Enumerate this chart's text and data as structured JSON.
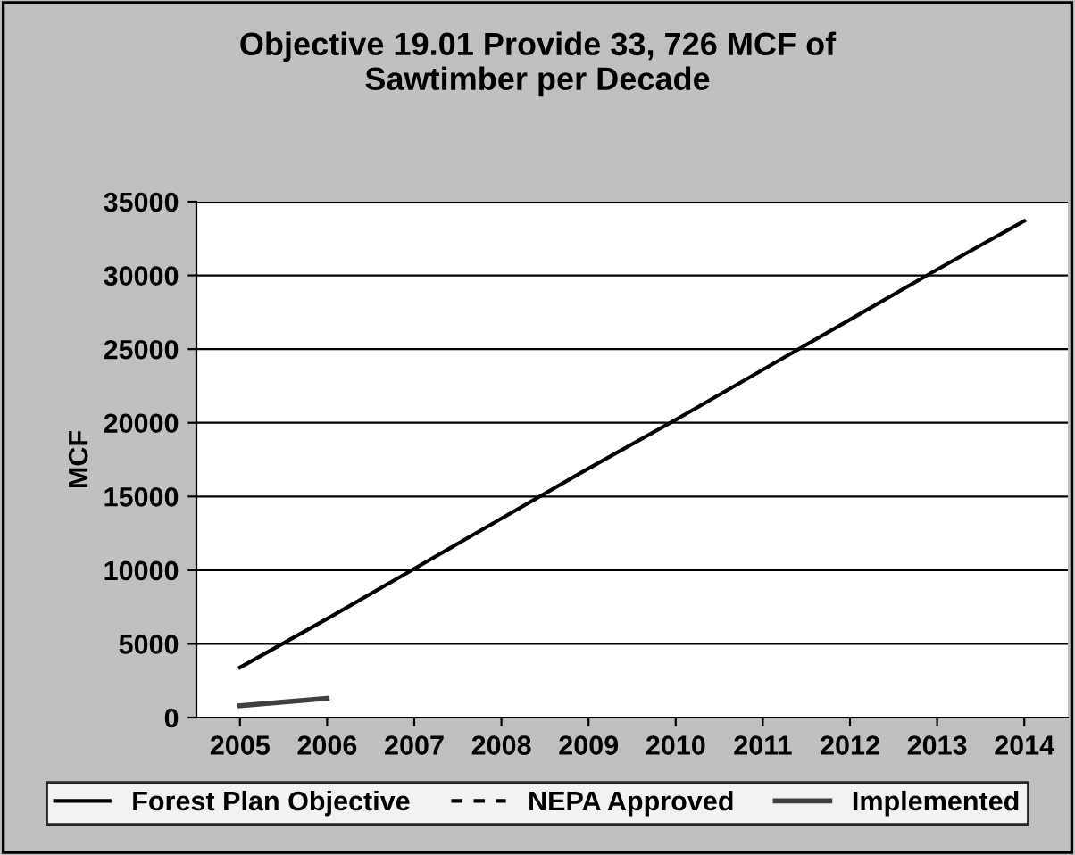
{
  "chart_data": {
    "type": "line",
    "title": "Objective 19.01 Provide 33, 726 MCF of\nSawtimber per Decade",
    "ylabel": "MCF",
    "categories": [
      "2005",
      "2006",
      "2007",
      "2008",
      "2009",
      "2010",
      "2011",
      "2012",
      "2013",
      "2014"
    ],
    "series": [
      {
        "name": "Forest Plan Objective",
        "color": "#000000",
        "line_style": "solid",
        "values": [
          3400,
          6700,
          10100,
          13500,
          16900,
          20200,
          23600,
          27000,
          30400,
          33700
        ]
      },
      {
        "name": "NEPA Approved",
        "color": "#000000",
        "line_style": "dashed",
        "values": [
          null,
          null,
          null,
          null,
          null,
          null,
          null,
          null,
          null,
          null
        ]
      },
      {
        "name": "Implemented",
        "color": "#404040",
        "line_style": "solid",
        "values": [
          800,
          1300,
          null,
          null,
          null,
          null,
          null,
          null,
          null,
          null
        ]
      }
    ],
    "ylim": [
      0,
      35000
    ],
    "yticks": [
      0,
      5000,
      10000,
      15000,
      20000,
      25000,
      30000,
      35000
    ],
    "grid": "y",
    "legend": "bottom"
  }
}
